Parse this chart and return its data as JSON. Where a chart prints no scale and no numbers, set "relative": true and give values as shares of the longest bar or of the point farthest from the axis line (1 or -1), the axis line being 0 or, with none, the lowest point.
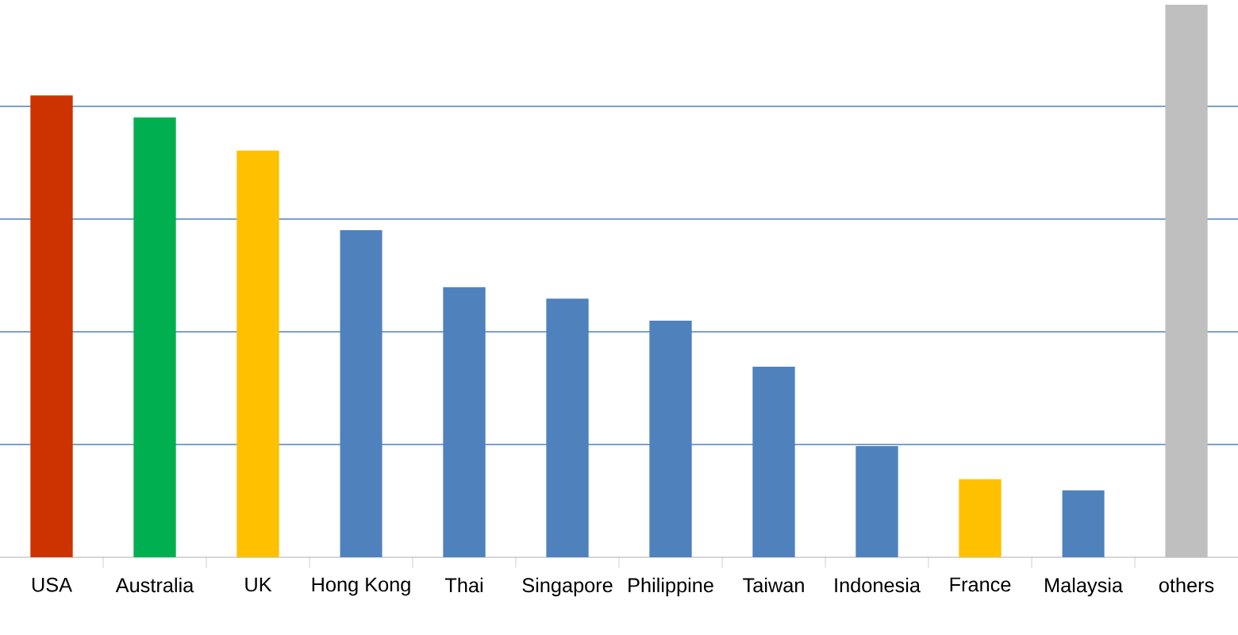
{
  "chart_data": {
    "type": "bar",
    "relative": true,
    "categories": [
      "USA",
      "Australia",
      "UK",
      "Hong Kong",
      "Thai",
      "Singapore",
      "Philippine",
      "Taiwan",
      "Indonesia",
      "France",
      "Malaysia",
      "others"
    ],
    "values": [
      0.836,
      0.796,
      0.736,
      0.592,
      0.489,
      0.468,
      0.428,
      0.345,
      0.201,
      0.141,
      0.121,
      1
    ],
    "colors": [
      "#cc3300",
      "#00b050",
      "#ffc000",
      "#4f81bd",
      "#4f81bd",
      "#4f81bd",
      "#4f81bd",
      "#4f81bd",
      "#4f81bd",
      "#ffc000",
      "#4f81bd",
      "#bfbfbf"
    ],
    "ref_lines": [
      {
        "axis": "y",
        "value": 0.204,
        "color": "#4f81bd"
      },
      {
        "axis": "y",
        "value": 0.408,
        "color": "#4f81bd"
      },
      {
        "axis": "y",
        "value": 0.612,
        "color": "#4f81bd"
      },
      {
        "axis": "y",
        "value": 0.816,
        "color": "#4f81bd"
      }
    ]
  }
}
